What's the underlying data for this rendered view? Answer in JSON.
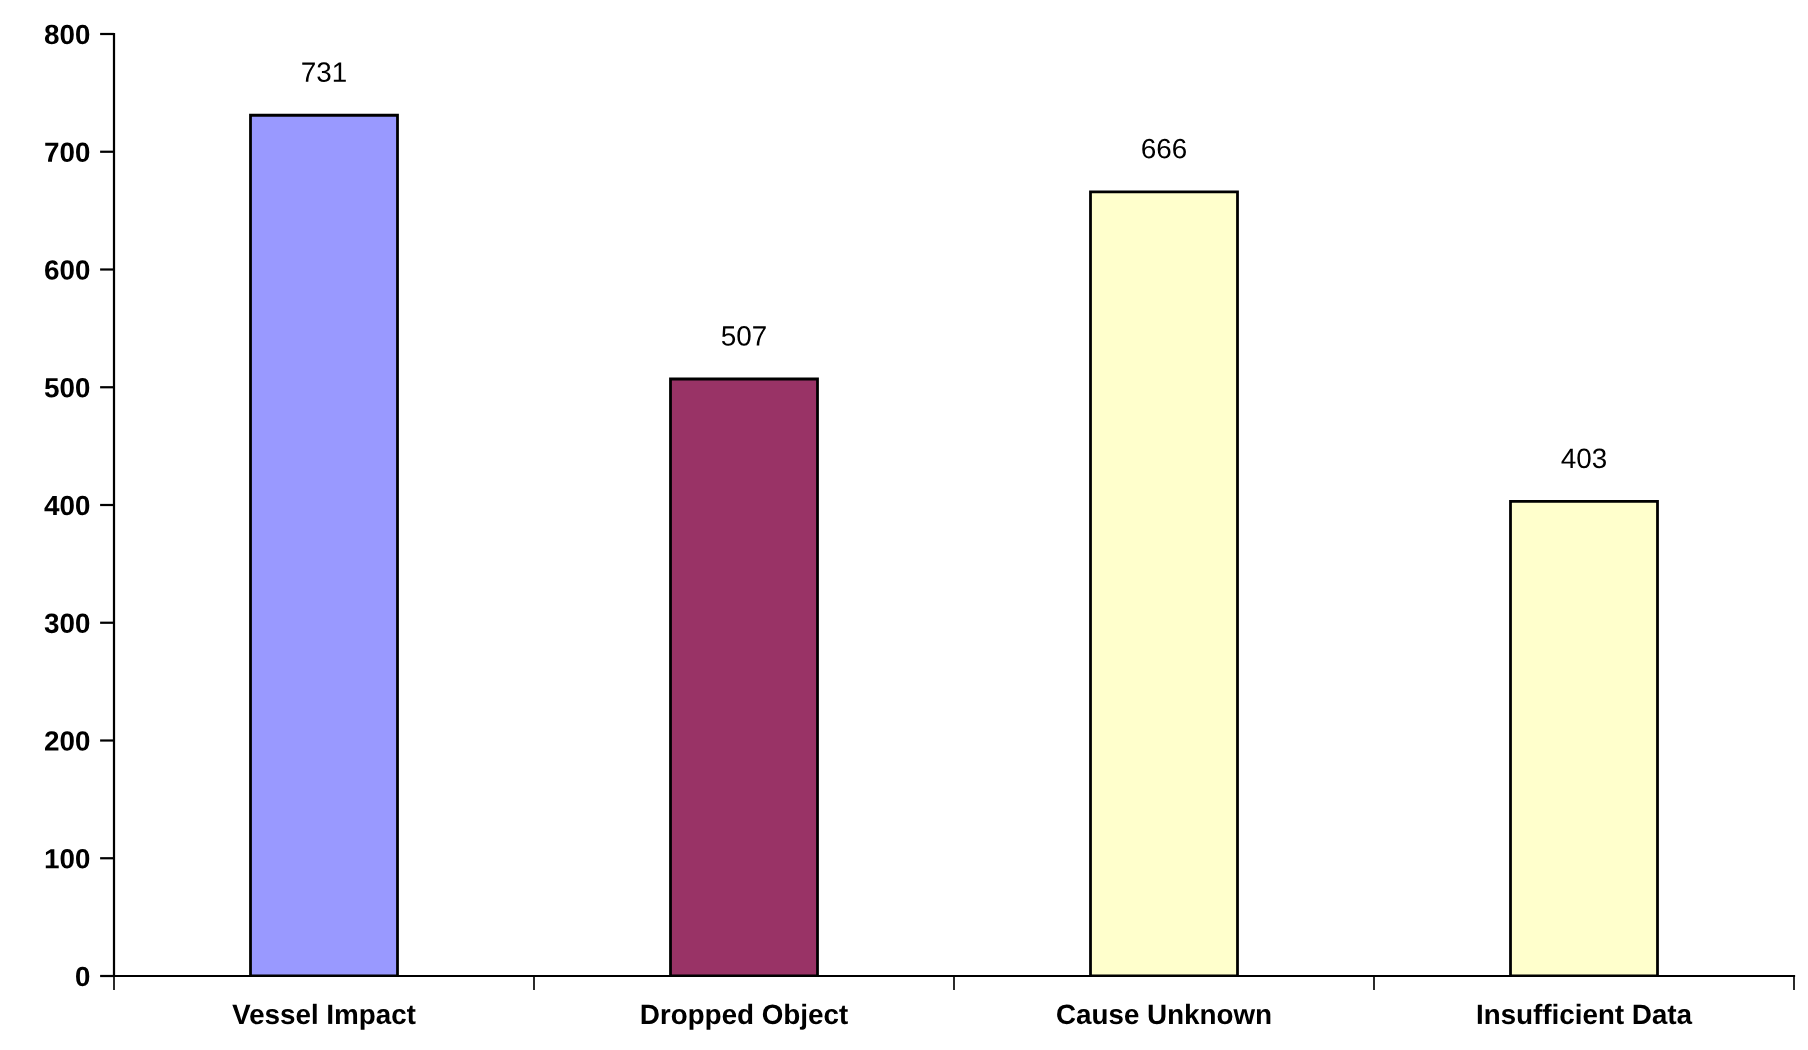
{
  "chart_data": {
    "type": "bar",
    "categories": [
      "Vessel Impact",
      "Dropped Object",
      "Cause Unknown",
      "Insufficient Data"
    ],
    "values": [
      731,
      507,
      666,
      403
    ],
    "colors": [
      "#9999ff",
      "#993366",
      "#ffffcc",
      "#ffffcc"
    ],
    "ylim": [
      0,
      800
    ],
    "yticks": [
      0,
      100,
      200,
      300,
      400,
      500,
      600,
      700,
      800
    ],
    "grid": false,
    "legend": false,
    "data_labels": true
  }
}
